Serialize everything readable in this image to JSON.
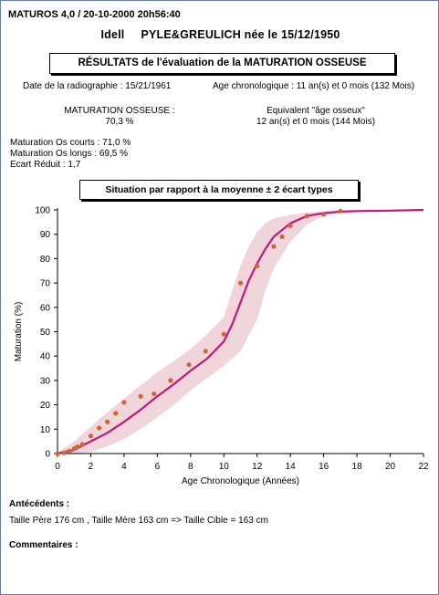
{
  "header": "MATUROS 4,0 / 20-10-2000  20h56:40",
  "patient": {
    "first_name": "Idell",
    "name_line": "PYLE&GREULICH née le 15/12/1950"
  },
  "report_title": "RÉSULTATS de l'évaluation de la MATURATION OSSEUSE",
  "radiograph_date": "Date de la radiographie : 15/21/1961",
  "chrono_age": "Age chronologique : 11 an(s) et 0 mois (132 Mois)",
  "maturation_label": "MATURATION OSSEUSE :",
  "maturation_value": "70,3 %",
  "equivalent_label": "Equivalent \"âge osseux\"",
  "equivalent_value": "12 an(s) et 0 mois (144 Mois)",
  "stats": [
    "Maturation Os courts : 71,0 %",
    "Maturation Os longs : 69,5 %",
    "Ecart Réduit : 1,7"
  ],
  "situation_title": "Situation par rapport à la moyenne ± 2 écart types",
  "colors": {
    "mean_curve": "#c0177d",
    "band": "#f0d6db",
    "points": "#d0643a"
  },
  "chart_data": {
    "type": "line",
    "xlabel": "Age Chronologique (Années)",
    "ylabel": "Maturation (%)",
    "xlim": [
      0,
      22
    ],
    "ylim": [
      0,
      100
    ],
    "xticks": [
      0,
      2,
      4,
      6,
      8,
      10,
      12,
      14,
      16,
      18,
      20,
      22
    ],
    "yticks": [
      0,
      10,
      20,
      30,
      40,
      50,
      60,
      70,
      80,
      90,
      100
    ],
    "mean": [
      [
        0,
        0
      ],
      [
        1,
        1.5
      ],
      [
        2,
        5
      ],
      [
        3,
        8.5
      ],
      [
        4,
        13
      ],
      [
        5,
        18
      ],
      [
        6,
        23.5
      ],
      [
        7,
        28.5
      ],
      [
        8,
        34
      ],
      [
        9,
        39
      ],
      [
        10,
        46
      ],
      [
        10.5,
        53
      ],
      [
        11,
        62
      ],
      [
        11.5,
        71
      ],
      [
        12,
        78
      ],
      [
        12.5,
        84
      ],
      [
        13,
        89
      ],
      [
        14,
        94.5
      ],
      [
        15,
        97.5
      ],
      [
        16,
        98.7
      ],
      [
        17,
        99.3
      ],
      [
        18,
        99.5
      ],
      [
        20,
        99.7
      ],
      [
        22,
        100
      ]
    ],
    "band_upper": [
      [
        0,
        0.5
      ],
      [
        1,
        5
      ],
      [
        2,
        11
      ],
      [
        3,
        17
      ],
      [
        4,
        22.5
      ],
      [
        5,
        28
      ],
      [
        6,
        33.5
      ],
      [
        7,
        38
      ],
      [
        8,
        43
      ],
      [
        9,
        49
      ],
      [
        10,
        56
      ],
      [
        10.5,
        67
      ],
      [
        11,
        77
      ],
      [
        11.5,
        85
      ],
      [
        12,
        91
      ],
      [
        12.5,
        94.5
      ],
      [
        13,
        96.5
      ],
      [
        14,
        98
      ],
      [
        15,
        99
      ],
      [
        16,
        99.3
      ],
      [
        18,
        99.6
      ],
      [
        22,
        100
      ]
    ],
    "band_lower": [
      [
        0,
        0
      ],
      [
        1,
        0
      ],
      [
        2,
        0.5
      ],
      [
        3,
        3
      ],
      [
        4,
        6
      ],
      [
        5,
        10
      ],
      [
        6,
        15
      ],
      [
        7,
        20
      ],
      [
        8,
        26
      ],
      [
        9,
        31
      ],
      [
        10,
        36
      ],
      [
        11,
        42
      ],
      [
        12,
        55
      ],
      [
        12.5,
        67
      ],
      [
        13,
        76
      ],
      [
        14,
        87
      ],
      [
        15,
        94
      ],
      [
        16,
        97.5
      ],
      [
        17,
        98.7
      ],
      [
        18,
        99.2
      ],
      [
        22,
        100
      ]
    ],
    "points": [
      [
        0,
        0
      ],
      [
        0.4,
        0.3
      ],
      [
        0.7,
        1
      ],
      [
        1,
        2
      ],
      [
        1.2,
        2.8
      ],
      [
        1.5,
        3.8
      ],
      [
        2,
        7.2
      ],
      [
        2.5,
        10.5
      ],
      [
        3,
        13
      ],
      [
        3.5,
        16.5
      ],
      [
        4,
        21
      ],
      [
        5,
        23.5
      ],
      [
        5.8,
        24.5
      ],
      [
        6.8,
        30
      ],
      [
        7.9,
        36.5
      ],
      [
        8.9,
        42
      ],
      [
        10,
        49
      ],
      [
        11,
        70
      ],
      [
        12,
        77
      ],
      [
        13,
        85
      ],
      [
        13.5,
        89
      ],
      [
        14,
        93.5
      ],
      [
        15,
        97.5
      ],
      [
        16,
        98.2
      ],
      [
        17,
        99.5
      ]
    ]
  },
  "antecedents_title": "Antécédents :",
  "antecedents_text": "Taille Père 176 cm , Taille Mère 163 cm => Taille Cible = 163 cm",
  "comments_title": "Commentaires :"
}
